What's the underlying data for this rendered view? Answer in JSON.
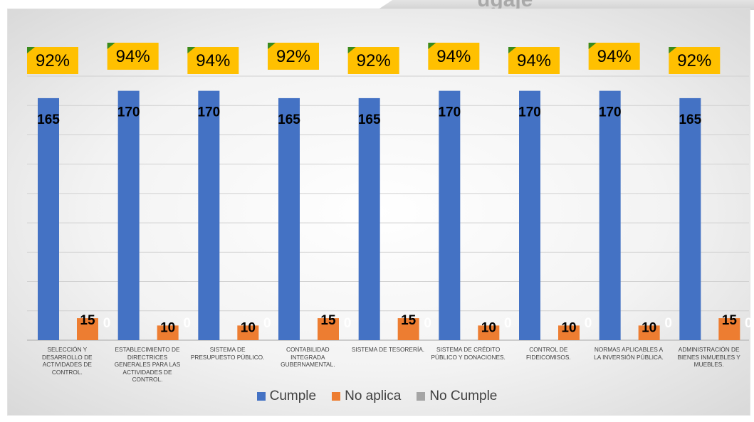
{
  "header_fragment": "ugaje",
  "chart_data": {
    "type": "bar",
    "categories": [
      "Selección y desarrollo de actividades de control.",
      "Establecimiento de directrices generales para las actividades de control.",
      "Sistema de presupuesto público.",
      "Contabilidad integrada gubernamental.",
      "Sistema de tesorería.",
      "Sistema de crédito público y donaciones.",
      "Control de fideicomisos.",
      "Normas aplicables a la inversión pública.",
      "Administración de bienes inmuebles y muebles."
    ],
    "series": [
      {
        "name": "Cumple",
        "color": "#4472c4",
        "values": [
          165,
          170,
          170,
          165,
          165,
          170,
          170,
          170,
          165
        ]
      },
      {
        "name": "No aplica",
        "color": "#ed7d31",
        "values": [
          15,
          10,
          10,
          15,
          15,
          10,
          10,
          10,
          15
        ]
      },
      {
        "name": "No Cumple",
        "color": "#a5a5a5",
        "values": [
          0,
          0,
          0,
          0,
          0,
          0,
          0,
          0,
          0
        ]
      }
    ],
    "percent_labels": [
      "92%",
      "94%",
      "94%",
      "92%",
      "92%",
      "94%",
      "94%",
      "94%",
      "92%"
    ],
    "percent_label_color": "#ffc000",
    "ylim": [
      0,
      180
    ],
    "grid": true,
    "legend_position": "bottom",
    "xlabel": "",
    "ylabel": "",
    "title": ""
  }
}
